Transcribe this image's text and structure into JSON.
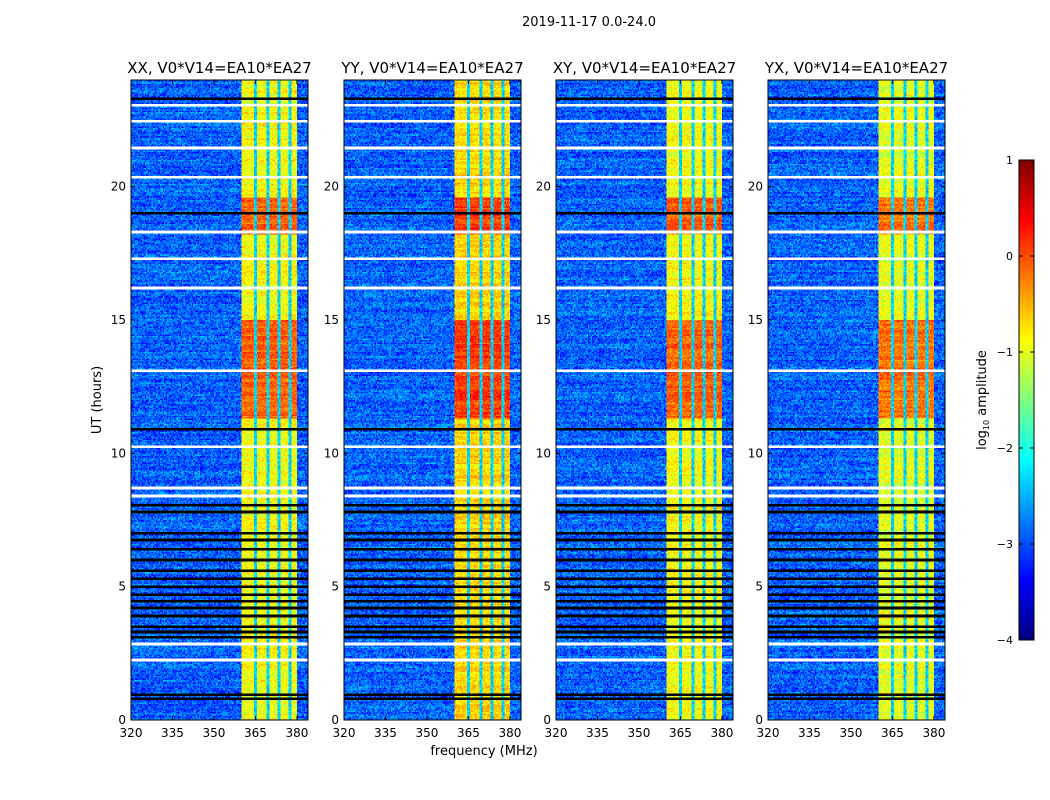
{
  "suptitle": "2019-11-17 0.0-24.0",
  "chart_data": {
    "type": "heatmap",
    "title": "2019-11-17 0.0-24.0",
    "xlabel": "frequency (MHz)",
    "ylabel": "UT (hours)",
    "xlim": [
      320,
      384
    ],
    "ylim": [
      0,
      24
    ],
    "xticks": [
      "320",
      "335",
      "350",
      "365",
      "380"
    ],
    "xtick_values": [
      320,
      335,
      350,
      365,
      380
    ],
    "yticks": [
      "0",
      "5",
      "10",
      "15",
      "20"
    ],
    "ytick_values": [
      0,
      5,
      10,
      15,
      20
    ],
    "panels": [
      {
        "title": "XX, V0*V14=EA10*EA27",
        "band_level": -0.9
      },
      {
        "title": "YY, V0*V14=EA10*EA27",
        "band_level": -0.7
      },
      {
        "title": "XY, V0*V14=EA10*EA27",
        "band_level": -0.9
      },
      {
        "title": "YX, V0*V14=EA10*EA27",
        "band_level": -1.0
      }
    ],
    "background_level": -2.9,
    "rfi_band_mhz": [
      360,
      380
    ],
    "rfi_gaps_mhz": [
      365,
      369.5,
      373.5,
      377.5
    ],
    "strong_rfi_hours": [
      [
        11.3,
        15.0
      ],
      [
        18.2,
        19.6
      ]
    ],
    "flagged_hours": [
      23.05,
      22.45,
      21.45,
      20.35,
      18.3,
      17.3,
      16.2,
      13.1,
      10.25,
      8.7,
      8.4,
      2.85,
      2.25
    ],
    "zero_hours": [
      23.3,
      19.0,
      10.9,
      8.05,
      7.8,
      7.0,
      6.75,
      6.4,
      6.0,
      5.6,
      5.3,
      5.0,
      4.7,
      4.45,
      4.2,
      3.9,
      3.5,
      3.3,
      3.1,
      0.95,
      0.8
    ],
    "colorbar": {
      "label": "log10 amplitude",
      "label_main": "log",
      "label_sub": "10",
      "label_rest": " amplitude",
      "range": [
        -4,
        1
      ],
      "ticks": [
        "1",
        "0",
        "−1",
        "−2",
        "−3",
        "−4"
      ],
      "tick_values": [
        1,
        0,
        -1,
        -2,
        -3,
        -4
      ],
      "colormap": "jet"
    }
  }
}
